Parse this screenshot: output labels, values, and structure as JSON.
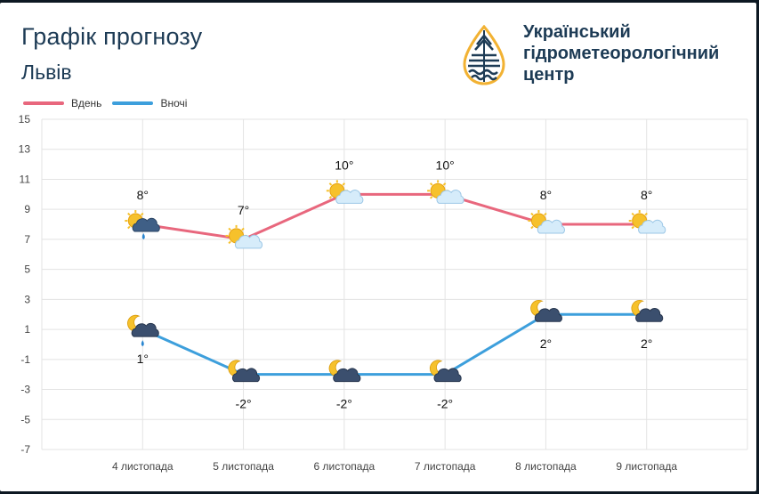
{
  "header": {
    "title": "Графік прогнозу",
    "city": "Львів",
    "logo_line1": "Український",
    "logo_line2": "гідрометеорологічний",
    "logo_line3": "центр"
  },
  "colors": {
    "day": "#e8677d",
    "night": "#3d9fdc",
    "grid": "#e3e3e3",
    "title": "#1d3b55"
  },
  "chart_data": {
    "type": "line",
    "categories": [
      "4 листопада",
      "5 листопада",
      "6 листопада",
      "7 листопада",
      "8 листопада",
      "9 листопада"
    ],
    "series": [
      {
        "name": "Вдень",
        "values": [
          8,
          7,
          10,
          10,
          8,
          8
        ],
        "labels": [
          "8°",
          "7°",
          "10°",
          "10°",
          "8°",
          "8°"
        ],
        "icons": [
          "sun-cloud-rain-icon",
          "sun-cloud-icon",
          "sun-cloud-icon",
          "sun-cloud-icon",
          "sun-cloud-icon",
          "sun-cloud-icon"
        ]
      },
      {
        "name": "Вночі",
        "values": [
          1,
          -2,
          -2,
          -2,
          2,
          2
        ],
        "labels": [
          "1°",
          "-2°",
          "-2°",
          "-2°",
          "2°",
          "2°"
        ],
        "icons": [
          "moon-cloud-rain-icon",
          "moon-cloud-icon",
          "moon-cloud-icon",
          "moon-cloud-icon",
          "moon-cloud-icon",
          "moon-cloud-icon"
        ]
      }
    ],
    "yticks": [
      15,
      13,
      11,
      9,
      7,
      5,
      3,
      1,
      -1,
      -3,
      -5,
      -7
    ],
    "ylim": [
      -7,
      15
    ],
    "grid": true,
    "legend": "top-left"
  }
}
